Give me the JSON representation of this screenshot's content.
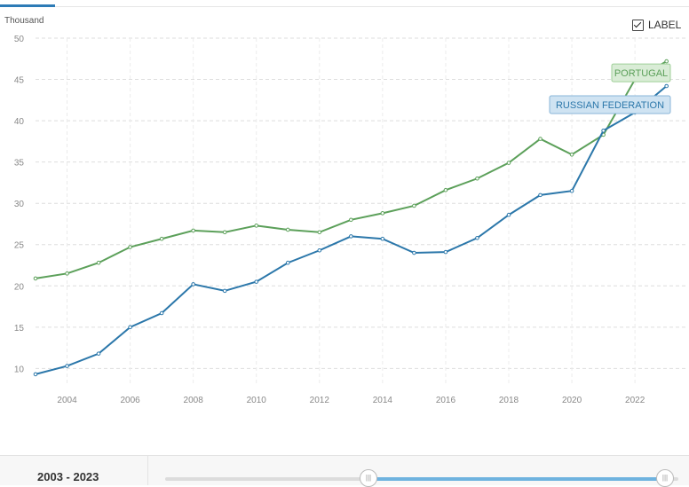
{
  "controls": {
    "label_toggle": "LABEL",
    "range_text": "2003 - 2023"
  },
  "chart_data": {
    "type": "line",
    "ylabel": "Thousand",
    "ylim": [
      8,
      50
    ],
    "xlim": [
      2003,
      2023.6
    ],
    "yticks": [
      10,
      15,
      20,
      25,
      30,
      35,
      40,
      45,
      50
    ],
    "xticks": [
      2004,
      2006,
      2008,
      2010,
      2012,
      2014,
      2016,
      2018,
      2020,
      2022
    ],
    "grid": true,
    "x": [
      2003,
      2004,
      2005,
      2006,
      2007,
      2008,
      2009,
      2010,
      2011,
      2012,
      2013,
      2014,
      2015,
      2016,
      2017,
      2018,
      2019,
      2020,
      2021,
      2022,
      2023
    ],
    "series": [
      {
        "name": "PORTUGAL",
        "color": "#5ca05a",
        "label_bg": "#d9ecd6",
        "label_border": "#9fcf98",
        "values": [
          20.9,
          21.5,
          22.8,
          24.7,
          25.7,
          26.7,
          26.5,
          27.3,
          26.8,
          26.5,
          28.0,
          28.8,
          29.7,
          31.6,
          33.0,
          34.9,
          37.8,
          35.9,
          38.3,
          45.0,
          47.2
        ]
      },
      {
        "name": "RUSSIAN FEDERATION",
        "color": "#2b77aa",
        "label_bg": "#cfe3f2",
        "label_border": "#8ab6d8",
        "values": [
          9.3,
          10.3,
          11.8,
          15.0,
          16.7,
          20.2,
          19.4,
          20.5,
          22.8,
          24.3,
          26.0,
          25.7,
          24.0,
          24.1,
          25.8,
          28.6,
          31.0,
          31.5,
          38.8,
          41.0,
          44.2
        ]
      }
    ]
  }
}
